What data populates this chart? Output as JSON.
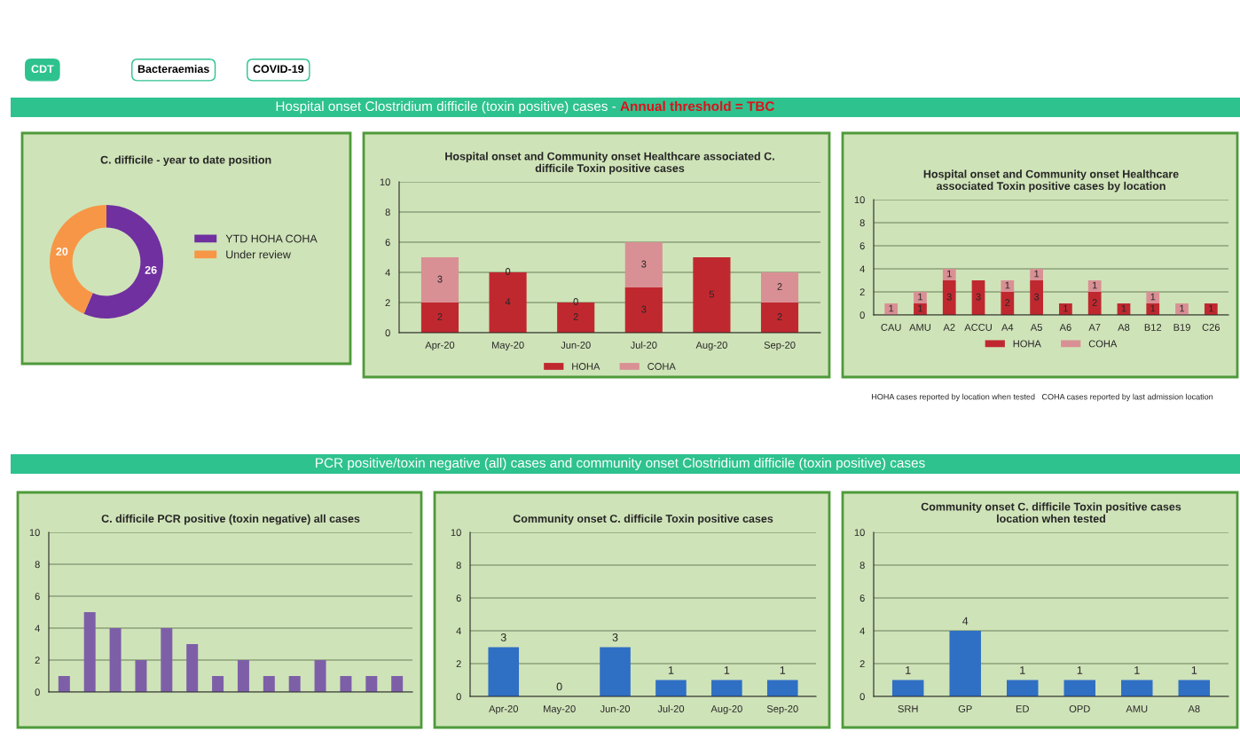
{
  "chart_data": [
    {
      "type": "donut",
      "title": "C. difficile - year to date position",
      "categories": [
        "YTD HOHA COHA",
        "Under review"
      ],
      "values": [
        26,
        20
      ],
      "colors": [
        "#7030a0",
        "#f79646"
      ],
      "data_labels": true,
      "legend": "right",
      "annotations": [
        "CDT",
        "Bacteraemias",
        "COVID-19",
        "Hospital onset Clostridium difficile (toxin positive) cases - ",
        "Annual threshold = TBC"
      ]
    },
    {
      "type": "bar",
      "stacked": true,
      "title": "Hospital onset and Community onset Healthcare associated C. difficile Toxin positive cases",
      "categories": [
        "Apr-20",
        "May-20",
        "Jun-20",
        "Jul-20",
        "Aug-20",
        "Sep-20"
      ],
      "series": [
        {
          "name": "HOHA",
          "color": "#c0282f",
          "values": [
            2,
            4,
            2,
            3,
            5,
            2
          ],
          "value_labels": [
            "2",
            "4",
            "2",
            "3",
            "5",
            "2"
          ]
        },
        {
          "name": "COHA",
          "color": "#d99094",
          "values": [
            3,
            0,
            0,
            3,
            0,
            2
          ],
          "value_labels": [
            "3",
            "0",
            "0",
            "3",
            null,
            "2"
          ]
        }
      ],
      "ylim": [
        0,
        10
      ],
      "yticks": [
        0,
        2,
        4,
        6,
        8,
        10
      ],
      "grid": "y",
      "legend": "bottom"
    },
    {
      "type": "bar",
      "stacked": true,
      "title": "Hospital onset and Community onset Healthcare associated Toxin positive cases by location",
      "categories": [
        "CAU",
        "AMU",
        "A2",
        "ACCU",
        "A4",
        "A5",
        "A6",
        "A7",
        "A8",
        "B12",
        "B19",
        "C26"
      ],
      "series": [
        {
          "name": "HOHA",
          "color": "#c0282f",
          "values": [
            0,
            1,
            3,
            3,
            2,
            3,
            1,
            2,
            1,
            1,
            0,
            1
          ],
          "value_labels": [
            null,
            "1",
            "3",
            "3",
            "2",
            "3",
            "1",
            "2",
            "1",
            "1",
            null,
            "1"
          ]
        },
        {
          "name": "COHA",
          "color": "#d99094",
          "values": [
            1,
            1,
            1,
            0,
            1,
            1,
            0,
            1,
            0,
            1,
            1,
            0
          ],
          "value_labels": [
            "1",
            "1",
            "1",
            null,
            "1",
            "1",
            null,
            "1",
            null,
            "1",
            "1",
            null
          ]
        }
      ],
      "ylim": [
        0,
        10
      ],
      "yticks": [
        0,
        2,
        4,
        6,
        8,
        10
      ],
      "grid": "y",
      "legend": "bottom",
      "annotations": [
        "HOHA cases reported by location when tested   COHA cases reported by last admission location"
      ]
    },
    {
      "type": "bar",
      "title": "C. difficile PCR positive (toxin negative) all cases",
      "categories": [
        null,
        null,
        null,
        null,
        null,
        null,
        null,
        null,
        null,
        null,
        null,
        null,
        null,
        null
      ],
      "values": [
        1,
        5,
        4,
        2,
        4,
        3,
        1,
        2,
        1,
        1,
        2,
        1,
        1,
        1
      ],
      "color": "#7d5fa8",
      "ylim": [
        0,
        10
      ],
      "yticks": [
        0,
        2,
        4,
        6,
        8,
        10
      ],
      "grid": "y",
      "annotations": [
        "PCR positive/toxin negative (all) cases and community onset Clostridium difficile (toxin positive) cases"
      ]
    },
    {
      "type": "bar",
      "title": "Community onset C. difficile Toxin positive cases",
      "categories": [
        "Apr-20",
        "May-20",
        "Jun-20",
        "Jul-20",
        "Aug-20",
        "Sep-20"
      ],
      "values": [
        3,
        0,
        3,
        1,
        1,
        1
      ],
      "color": "#2f6fc4",
      "data_labels": true,
      "ylim": [
        0,
        10
      ],
      "yticks": [
        0,
        2,
        4,
        6,
        8,
        10
      ],
      "grid": "y"
    },
    {
      "type": "bar",
      "title": "Community onset C. difficile Toxin positive cases location when tested",
      "categories": [
        "SRH",
        "GP",
        "ED",
        "OPD",
        "AMU",
        "A8"
      ],
      "values": [
        1,
        4,
        1,
        1,
        1,
        1
      ],
      "color": "#2f6fc4",
      "data_labels": true,
      "ylim": [
        0,
        10
      ],
      "yticks": [
        0,
        2,
        4,
        6,
        8,
        10
      ],
      "grid": "y"
    }
  ]
}
